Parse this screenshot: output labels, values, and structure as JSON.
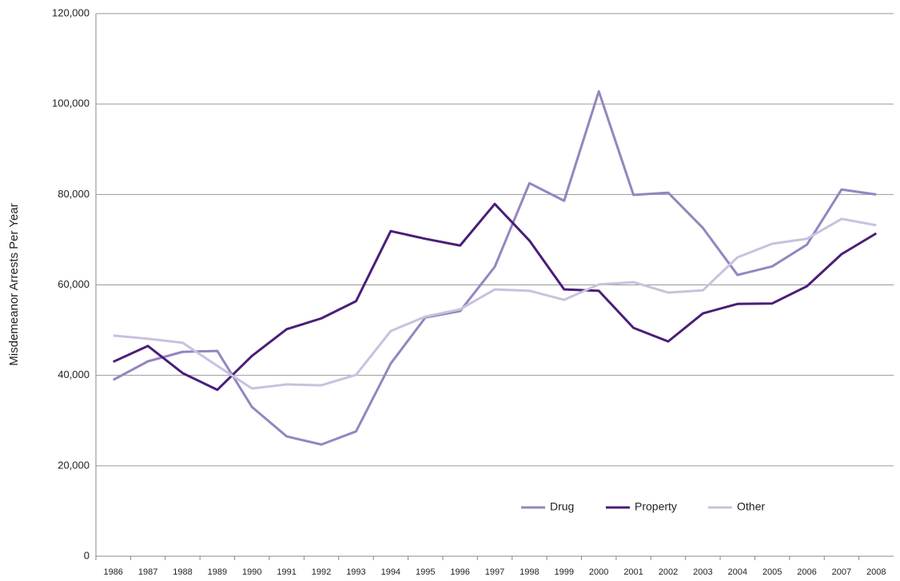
{
  "chart_data": {
    "type": "line",
    "y_label": "Misdemeanor Arrests Per Year",
    "categories": [
      "1986",
      "1987",
      "1988",
      "1989",
      "1990",
      "1991",
      "1992",
      "1993",
      "1994",
      "1995",
      "1996",
      "1997",
      "1998",
      "1999",
      "2000",
      "2001",
      "2002",
      "2003",
      "2004",
      "2005",
      "2006",
      "2007",
      "2008"
    ],
    "series": [
      {
        "name": "Drug",
        "color": "#9585bf",
        "values": [
          39000,
          43100,
          45200,
          45400,
          33000,
          26500,
          24700,
          27600,
          42600,
          52800,
          54200,
          64000,
          82500,
          78600,
          102800,
          79900,
          80400,
          72600,
          62200,
          64100,
          68900,
          81100,
          80000
        ]
      },
      {
        "name": "Property",
        "color": "#4a1e78",
        "values": [
          43000,
          46500,
          40500,
          36800,
          44300,
          50200,
          52600,
          56400,
          71900,
          70200,
          68700,
          77900,
          69800,
          59000,
          58700,
          50500,
          47500,
          53700,
          55800,
          55900,
          59700,
          66800,
          71400
        ]
      },
      {
        "name": "Other",
        "color": "#c9c1de",
        "values": [
          48800,
          48100,
          47200,
          42100,
          37100,
          38000,
          37800,
          40100,
          49800,
          53000,
          54600,
          59000,
          58700,
          56700,
          60100,
          60600,
          58300,
          58800,
          66100,
          69100,
          70200,
          74600,
          73200
        ]
      }
    ],
    "ylim": [
      0,
      120000
    ],
    "yticks": [
      0,
      {
        "value": 20000,
        "label": "20,000"
      },
      {
        "value": 40000,
        "label": "40,000"
      },
      {
        "value": 60000,
        "label": "60,000"
      },
      {
        "value": 80000,
        "label": "80,000"
      },
      {
        "value": 100000,
        "label": "100,000"
      },
      {
        "value": 120000,
        "label": "120,000"
      }
    ],
    "grid": true,
    "legend": "bottom-center"
  }
}
